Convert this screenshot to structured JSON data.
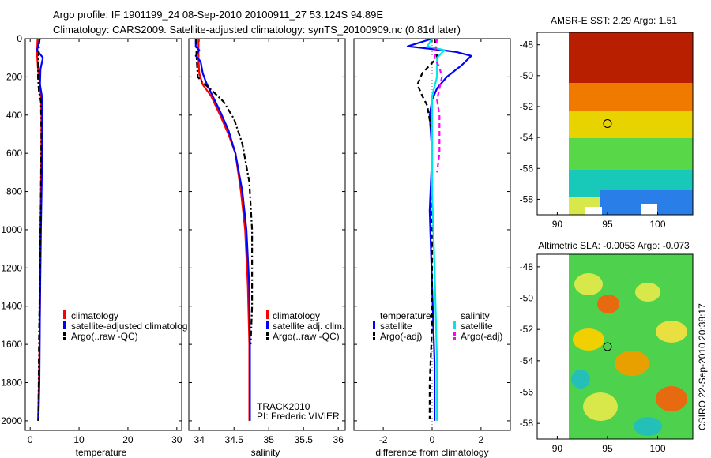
{
  "title_line1": "Argo profile: IF 1901199_24 08-Sep-2010 20100911_27 53.124S 94.89E",
  "title_line2": "Climatology: CARS2009. Satellite-adjusted climatology: synTS_20100909.nc (0.81d later)",
  "side_note": "CSIRO 22-Sep-2010 20:38:17",
  "colors": {
    "red": "#ff0000",
    "blue": "#0000ff",
    "black": "#000000",
    "cyan": "#00e5e5",
    "magenta": "#ff00ff"
  },
  "chart_data": [
    {
      "type": "line",
      "xlabel": "temperature",
      "ylabel": "",
      "xlim": [
        -1,
        31
      ],
      "ylim": [
        2050,
        0
      ],
      "xticks": [
        "0",
        "10",
        "20",
        "30"
      ],
      "yticks": [
        "0",
        "200",
        "400",
        "600",
        "800",
        "1000",
        "1200",
        "1400",
        "1600",
        "1800",
        "2000"
      ],
      "legend": [
        "climatology",
        "satellite-adjusted climatolog",
        "Argo(..raw -QC)"
      ],
      "series": [
        {
          "name": "climatology",
          "color": "red",
          "dash": "solid",
          "points": [
            [
              1.5,
              0
            ],
            [
              1.4,
              80
            ],
            [
              1.6,
              160
            ],
            [
              2.0,
              240
            ],
            [
              2.2,
              300
            ],
            [
              2.3,
              400
            ],
            [
              2.3,
              600
            ],
            [
              2.2,
              800
            ],
            [
              2.1,
              1000
            ],
            [
              2.0,
              1400
            ],
            [
              1.8,
              1800
            ],
            [
              1.6,
              2000
            ]
          ]
        },
        {
          "name": "satellite-adjusted climatology",
          "color": "blue",
          "dash": "solid",
          "points": [
            [
              2.0,
              0
            ],
            [
              1.4,
              60
            ],
            [
              2.6,
              100
            ],
            [
              2.1,
              160
            ],
            [
              2.0,
              240
            ],
            [
              2.4,
              300
            ],
            [
              2.5,
              400
            ],
            [
              2.4,
              700
            ],
            [
              2.2,
              1000
            ],
            [
              2.0,
              1400
            ],
            [
              1.9,
              1800
            ],
            [
              1.7,
              2000
            ]
          ]
        },
        {
          "name": "Argo(..raw -QC)",
          "color": "black",
          "dash": "dashdot",
          "points": [
            [
              1.9,
              0
            ],
            [
              1.7,
              100
            ],
            [
              1.6,
              200
            ],
            [
              1.8,
              280
            ],
            [
              2.2,
              330
            ],
            [
              2.3,
              500
            ],
            [
              2.2,
              800
            ],
            [
              2.0,
              1200
            ],
            [
              1.8,
              1600
            ],
            [
              1.7,
              2000
            ]
          ]
        }
      ]
    },
    {
      "type": "line",
      "xlabel": "salinity",
      "ylabel": "",
      "xlim": [
        33.85,
        36.1
      ],
      "ylim": [
        2050,
        0
      ],
      "xticks": [
        "34",
        "34.5",
        "35",
        "35.5",
        "36"
      ],
      "yticks": [],
      "legend": [
        "climatology",
        "satellite adj. clim.",
        "Argo(..raw -QC)"
      ],
      "annotations": [
        "TRACK2010",
        "PI: Frederic VIVIER"
      ],
      "series": [
        {
          "name": "climatology",
          "color": "red",
          "dash": "solid",
          "points": [
            [
              33.99,
              0
            ],
            [
              33.99,
              100
            ],
            [
              34.0,
              180
            ],
            [
              34.05,
              240
            ],
            [
              34.17,
              300
            ],
            [
              34.3,
              400
            ],
            [
              34.42,
              500
            ],
            [
              34.52,
              600
            ],
            [
              34.6,
              800
            ],
            [
              34.66,
              1000
            ],
            [
              34.7,
              1300
            ],
            [
              34.72,
              1600
            ],
            [
              34.72,
              2000
            ]
          ]
        },
        {
          "name": "satellite adj. clim.",
          "color": "blue",
          "dash": "solid",
          "points": [
            [
              33.95,
              0
            ],
            [
              33.95,
              40
            ],
            [
              34.0,
              60
            ],
            [
              33.95,
              90
            ],
            [
              34.02,
              120
            ],
            [
              34.05,
              180
            ],
            [
              34.1,
              230
            ],
            [
              34.18,
              290
            ],
            [
              34.3,
              380
            ],
            [
              34.42,
              480
            ],
            [
              34.52,
              600
            ],
            [
              34.62,
              800
            ],
            [
              34.68,
              1000
            ],
            [
              34.72,
              1300
            ],
            [
              34.73,
              1600
            ],
            [
              34.73,
              2000
            ]
          ]
        },
        {
          "name": "Argo(..raw -QC)",
          "color": "black",
          "dash": "dashdot",
          "points": [
            [
              33.96,
              0
            ],
            [
              33.96,
              80
            ],
            [
              33.97,
              150
            ],
            [
              33.98,
              200
            ],
            [
              34.05,
              230
            ],
            [
              34.18,
              270
            ],
            [
              34.35,
              330
            ],
            [
              34.5,
              420
            ],
            [
              34.62,
              550
            ],
            [
              34.72,
              750
            ],
            [
              34.76,
              1000
            ],
            [
              34.76,
              1400
            ],
            [
              34.74,
              1600
            ]
          ]
        }
      ]
    },
    {
      "type": "line",
      "xlabel": "difference from climatology",
      "ylabel": "",
      "xlim": [
        -3.2,
        3.2
      ],
      "ylim": [
        2050,
        0
      ],
      "xticks": [
        "-2",
        "0",
        "2"
      ],
      "yticks": [],
      "legend_headers": [
        "temperature",
        "salinity"
      ],
      "legend": [
        "satellite",
        "Argo(-adj)",
        "satellite",
        "Argo(-adj)"
      ],
      "series": [
        {
          "name": "temperature satellite",
          "color": "blue",
          "dash": "solid",
          "points": [
            [
              0,
              0
            ],
            [
              -1.0,
              40
            ],
            [
              0.4,
              60
            ],
            [
              1.0,
              70
            ],
            [
              1.6,
              90
            ],
            [
              1.2,
              140
            ],
            [
              0.6,
              200
            ],
            [
              0.2,
              260
            ],
            [
              0.0,
              320
            ],
            [
              -0.1,
              400
            ],
            [
              0.0,
              600
            ],
            [
              -0.1,
              900
            ],
            [
              0.0,
              1300
            ],
            [
              0.1,
              1700
            ],
            [
              0.1,
              2000
            ]
          ]
        },
        {
          "name": "temperature Argo(-adj)",
          "color": "black",
          "dash": "dash",
          "points": [
            [
              0.1,
              0
            ],
            [
              0.2,
              100
            ],
            [
              -0.4,
              180
            ],
            [
              -0.6,
              240
            ],
            [
              -0.4,
              300
            ],
            [
              -0.2,
              350
            ],
            [
              0.0,
              500
            ],
            [
              0.0,
              1000
            ],
            [
              0.0,
              1500
            ],
            [
              -0.1,
              1800
            ],
            [
              -0.1,
              1990
            ]
          ]
        },
        {
          "name": "salinity satellite",
          "color": "cyan",
          "dash": "solid",
          "points": [
            [
              0.0,
              0
            ],
            [
              -0.2,
              40
            ],
            [
              0.5,
              60
            ],
            [
              0.2,
              100
            ],
            [
              0.2,
              200
            ],
            [
              0.0,
              300
            ],
            [
              0.0,
              500
            ],
            [
              0.0,
              800
            ],
            [
              0.1,
              1200
            ],
            [
              0.2,
              1700
            ],
            [
              0.2,
              2000
            ]
          ]
        },
        {
          "name": "salinity Argo(-adj)",
          "color": "magenta",
          "dash": "dash",
          "points": [
            [
              0.2,
              0
            ],
            [
              0.1,
              100
            ],
            [
              0.3,
              150
            ],
            [
              0.4,
              200
            ],
            [
              0.3,
              260
            ],
            [
              0.2,
              320
            ],
            [
              0.3,
              400
            ],
            [
              0.3,
              600
            ],
            [
              0.2,
              700
            ]
          ]
        }
      ]
    },
    {
      "type": "heatmap",
      "title": "AMSR-E SST: 2.29  Argo: 1.51",
      "xlim": [
        88,
        103.5
      ],
      "ylim": [
        -59,
        -47.2
      ],
      "xticks": [
        "90",
        "95",
        "100"
      ],
      "yticks": [
        "-48",
        "-50",
        "-52",
        "-54",
        "-56",
        "-58"
      ],
      "marker": [
        95,
        -53.1
      ]
    },
    {
      "type": "heatmap",
      "title": "Altimetric SLA: -0.0053  Argo: -0.073",
      "xlim": [
        88,
        103.5
      ],
      "ylim": [
        -59,
        -47.2
      ],
      "xticks": [
        "90",
        "95",
        "100"
      ],
      "yticks": [
        "-48",
        "-50",
        "-52",
        "-54",
        "-56",
        "-58"
      ],
      "marker": [
        95,
        -53.1
      ]
    }
  ]
}
